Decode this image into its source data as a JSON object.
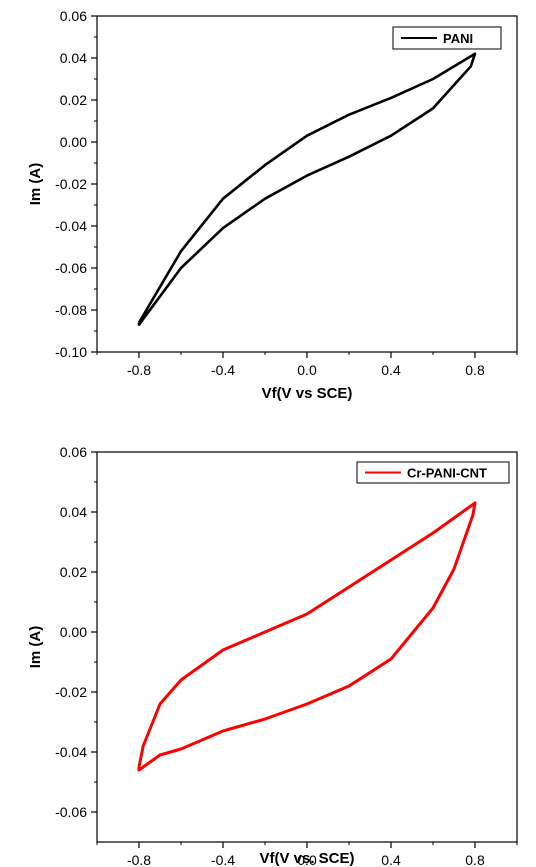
{
  "chart_data": [
    {
      "type": "line",
      "title": "",
      "xlabel": "Vf(V vs SCE)",
      "ylabel": "Im (A)",
      "xlim": [
        -1.0,
        1.0
      ],
      "ylim": [
        -0.1,
        0.06
      ],
      "x_ticks": [
        -0.8,
        -0.4,
        0.0,
        0.4,
        0.8
      ],
      "x_tick_labels": [
        "-0.8",
        "-0.4",
        "0.0",
        "0.4",
        "0.8"
      ],
      "y_ticks": [
        -0.1,
        -0.08,
        -0.06,
        -0.04,
        -0.02,
        0.0,
        0.02,
        0.04,
        0.06
      ],
      "y_tick_labels": [
        "-0.10",
        "-0.08",
        "-0.06",
        "-0.04",
        "-0.02",
        "0.00",
        "0.02",
        "0.04",
        "0.06"
      ],
      "grid": false,
      "legend_position": "top-right",
      "series": [
        {
          "name": "PANI",
          "color": "#000000",
          "x": [
            -0.8,
            -0.6,
            -0.4,
            -0.2,
            0.0,
            0.2,
            0.4,
            0.6,
            0.8,
            0.78,
            0.6,
            0.4,
            0.2,
            0.0,
            -0.2,
            -0.4,
            -0.6,
            -0.8
          ],
          "y": [
            -0.086,
            -0.052,
            -0.027,
            -0.011,
            0.003,
            0.013,
            0.021,
            0.03,
            0.042,
            0.036,
            0.016,
            0.003,
            -0.007,
            -0.016,
            -0.027,
            -0.041,
            -0.06,
            -0.087
          ]
        }
      ]
    },
    {
      "type": "line",
      "title": "",
      "xlabel": "Vf(V vs. SCE)",
      "ylabel": "Im (A)",
      "xlim": [
        -1.0,
        1.0
      ],
      "ylim": [
        -0.07,
        0.06
      ],
      "x_ticks": [
        -0.8,
        -0.4,
        0.0,
        0.4,
        0.8
      ],
      "x_tick_labels": [
        "-0.8",
        "-0.4",
        "0.0",
        "0.4",
        "0.8"
      ],
      "y_ticks": [
        -0.06,
        -0.04,
        -0.02,
        0.0,
        0.02,
        0.04,
        0.06
      ],
      "y_tick_labels": [
        "-0.06",
        "-0.04",
        "-0.02",
        "0.00",
        "0.02",
        "0.04",
        "0.06"
      ],
      "grid": false,
      "legend_position": "top-right",
      "series": [
        {
          "name": "Cr-PANI-CNT",
          "color": "#ff0000",
          "x": [
            -0.8,
            -0.78,
            -0.7,
            -0.6,
            -0.4,
            -0.2,
            0.0,
            0.2,
            0.4,
            0.6,
            0.8,
            0.79,
            0.7,
            0.6,
            0.4,
            0.2,
            0.0,
            -0.2,
            -0.4,
            -0.6,
            -0.7,
            -0.8
          ],
          "y": [
            -0.045,
            -0.038,
            -0.024,
            -0.016,
            -0.006,
            0.0,
            0.006,
            0.015,
            0.024,
            0.033,
            0.043,
            0.039,
            0.021,
            0.008,
            -0.009,
            -0.018,
            -0.024,
            -0.029,
            -0.033,
            -0.039,
            -0.041,
            -0.046
          ]
        }
      ]
    }
  ]
}
